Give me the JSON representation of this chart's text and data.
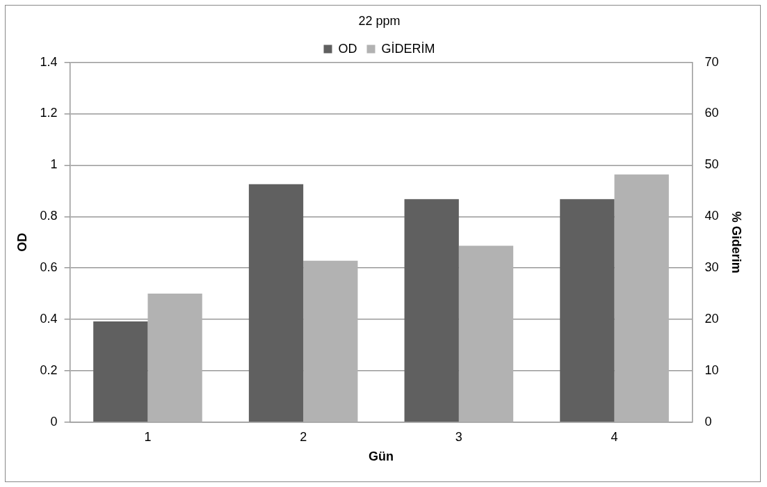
{
  "chart_data": {
    "type": "bar",
    "legend_title": "22 ppm",
    "xlabel": "Gün",
    "ylabel": "OD",
    "y2label": "% Giderim",
    "categories": [
      "1",
      "2",
      "3",
      "4"
    ],
    "series": [
      {
        "name": "OD",
        "color": "#606060",
        "values": [
          0.392,
          0.926,
          0.868,
          0.868
        ]
      },
      {
        "name": "GİDERİM",
        "color": "#b2b2b2",
        "axis": "y2",
        "values": [
          25.0,
          31.4,
          34.3,
          48.2
        ]
      }
    ],
    "ylim": [
      0,
      1.4
    ],
    "yticks": [
      0,
      0.2,
      0.4,
      0.6,
      0.8,
      1,
      1.2,
      1.4
    ],
    "y2lim": [
      0,
      70
    ],
    "y2ticks": [
      0,
      10,
      20,
      30,
      40,
      50,
      60,
      70
    ],
    "grid": "y",
    "legend": "top"
  }
}
